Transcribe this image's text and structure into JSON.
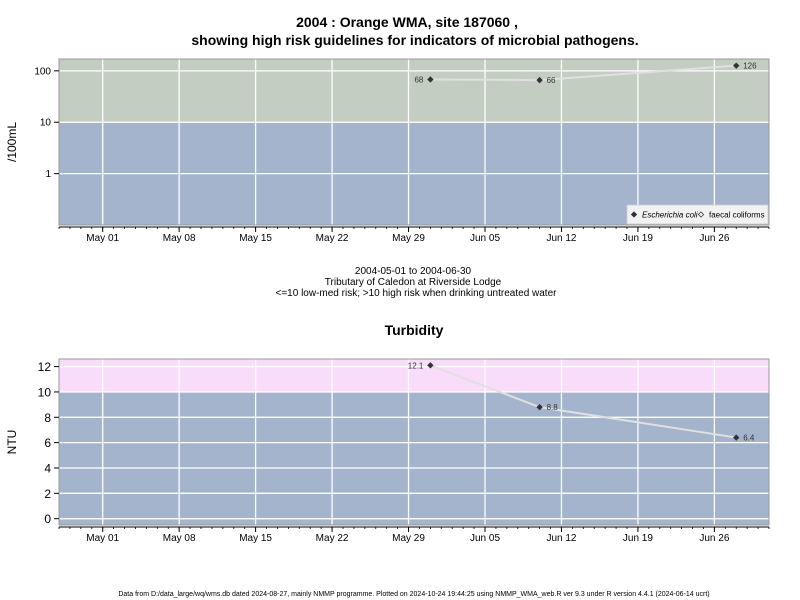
{
  "title": {
    "line1": "2004 : Orange WMA, site 187060 ,",
    "line2": "showing high risk guidelines for indicators of microbial pathogens."
  },
  "subtitle": {
    "line1": "2004-05-01 to 2004-06-30",
    "line2": "Tributary of Caledon at Riverside Lodge",
    "line3": "<=10 low-med risk; >10 high risk when drinking untreated water"
  },
  "footer": "Data from D:/data_large/wq/wms.db dated 2024-08-27, mainly NMMP programme. Plotted on 2024-10-24 19:44:25 using NMMP_WMA_web.R ver 9.3 under R version 4.4.1 (2024-06-14 ucrt)",
  "colors": {
    "low_band": "#a3b4cc",
    "high_band_micro": "#c3cdc2",
    "high_band_turb": "#f9dcf9",
    "line": "#e0e0e0",
    "grid": "#ffffff",
    "marker": "#333333"
  },
  "chart_data": [
    {
      "type": "line",
      "title": "",
      "xlabel": "",
      "ylabel": "/100mL",
      "yscale": "log",
      "ylim": [
        0.1,
        170
      ],
      "threshold": 10,
      "xlim": [
        "2004-04-27",
        "2004-07-01"
      ],
      "x_ticks": [
        {
          "date": "2004-05-01",
          "label": "May 01"
        },
        {
          "date": "2004-05-08",
          "label": "May 08"
        },
        {
          "date": "2004-05-15",
          "label": "May 15"
        },
        {
          "date": "2004-05-22",
          "label": "May 22"
        },
        {
          "date": "2004-05-29",
          "label": "May 29"
        },
        {
          "date": "2004-06-05",
          "label": "Jun 05"
        },
        {
          "date": "2004-06-12",
          "label": "Jun 12"
        },
        {
          "date": "2004-06-19",
          "label": "Jun 19"
        },
        {
          "date": "2004-06-26",
          "label": "Jun 26"
        }
      ],
      "y_ticks": [
        {
          "value": 1,
          "label": "1"
        },
        {
          "value": 10,
          "label": "10"
        },
        {
          "value": 100,
          "label": "100"
        }
      ],
      "grid": true,
      "legend": {
        "position": "bottom-right",
        "entries": [
          {
            "label": "Escherichia coli",
            "marker": "filled-diamond",
            "italic": true
          },
          {
            "label": "faecal coliforms",
            "marker": "open-diamond",
            "italic": false
          }
        ]
      },
      "series": [
        {
          "name": "Escherichia coli",
          "points": [
            {
              "x": "2004-05-31",
              "y": 68,
              "label": "68",
              "label_side": "left"
            },
            {
              "x": "2004-06-10",
              "y": 66,
              "label": "66",
              "label_side": "right"
            },
            {
              "x": "2004-06-28",
              "y": 126,
              "label": "126",
              "label_side": "right"
            }
          ]
        }
      ]
    },
    {
      "type": "line",
      "title": "Turbidity",
      "xlabel": "",
      "ylabel": "NTU",
      "yscale": "linear",
      "ylim": [
        -0.5,
        12.6
      ],
      "threshold": 10,
      "xlim": [
        "2004-04-27",
        "2004-07-01"
      ],
      "x_ticks": [
        {
          "date": "2004-05-01",
          "label": "May 01"
        },
        {
          "date": "2004-05-08",
          "label": "May 08"
        },
        {
          "date": "2004-05-15",
          "label": "May 15"
        },
        {
          "date": "2004-05-22",
          "label": "May 22"
        },
        {
          "date": "2004-05-29",
          "label": "May 29"
        },
        {
          "date": "2004-06-05",
          "label": "Jun 05"
        },
        {
          "date": "2004-06-12",
          "label": "Jun 12"
        },
        {
          "date": "2004-06-19",
          "label": "Jun 19"
        },
        {
          "date": "2004-06-26",
          "label": "Jun 26"
        }
      ],
      "y_ticks": [
        {
          "value": 0,
          "label": "0"
        },
        {
          "value": 2,
          "label": "2"
        },
        {
          "value": 4,
          "label": "4"
        },
        {
          "value": 6,
          "label": "6"
        },
        {
          "value": 8,
          "label": "8"
        },
        {
          "value": 10,
          "label": "10"
        },
        {
          "value": 12,
          "label": "12"
        }
      ],
      "grid": true,
      "series": [
        {
          "name": "Turbidity",
          "points": [
            {
              "x": "2004-05-31",
              "y": 12.1,
              "label": "12.1",
              "label_side": "left"
            },
            {
              "x": "2004-06-10",
              "y": 8.8,
              "label": "8.8",
              "label_side": "right"
            },
            {
              "x": "2004-06-28",
              "y": 6.4,
              "label": "6.4",
              "label_side": "right"
            }
          ]
        }
      ]
    }
  ]
}
